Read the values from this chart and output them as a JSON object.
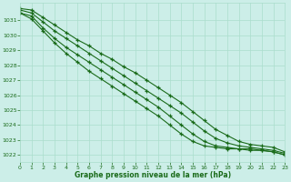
{
  "bg_color": "#cceee8",
  "grid_color": "#aaddcc",
  "line_color": "#1a6b1a",
  "marker_color": "#1a6b1a",
  "xlabel": "Graphe pression niveau de la mer (hPa)",
  "xlabel_color": "#1a6b1a",
  "tick_color": "#1a6b1a",
  "xlim": [
    0,
    23
  ],
  "ylim": [
    1021.5,
    1032.2
  ],
  "yticks": [
    1022,
    1023,
    1024,
    1025,
    1026,
    1027,
    1028,
    1029,
    1030,
    1031
  ],
  "xticks": [
    0,
    1,
    2,
    3,
    4,
    5,
    6,
    7,
    8,
    9,
    10,
    11,
    12,
    13,
    14,
    15,
    16,
    17,
    18,
    19,
    20,
    21,
    22,
    23
  ],
  "series": [
    [
      1031.8,
      1031.7,
      1031.2,
      1030.7,
      1030.2,
      1029.7,
      1029.3,
      1028.8,
      1028.4,
      1027.9,
      1027.5,
      1027.0,
      1026.5,
      1026.0,
      1025.5,
      1024.9,
      1024.3,
      1023.7,
      1023.3,
      1022.9,
      1022.7,
      1022.6,
      1022.5,
      1022.2
    ],
    [
      1031.7,
      1031.5,
      1030.9,
      1030.3,
      1029.8,
      1029.3,
      1028.8,
      1028.3,
      1027.8,
      1027.3,
      1026.8,
      1026.3,
      1025.8,
      1025.3,
      1024.8,
      1024.2,
      1023.6,
      1023.1,
      1022.8,
      1022.6,
      1022.5,
      1022.4,
      1022.3,
      1022.1
    ],
    [
      1031.5,
      1031.3,
      1030.5,
      1029.8,
      1029.2,
      1028.7,
      1028.2,
      1027.7,
      1027.2,
      1026.7,
      1026.2,
      1025.7,
      1025.2,
      1024.6,
      1024.0,
      1023.4,
      1022.9,
      1022.6,
      1022.5,
      1022.4,
      1022.4,
      1022.3,
      1022.2,
      1022.0
    ],
    [
      1031.5,
      1031.1,
      1030.3,
      1029.5,
      1028.8,
      1028.2,
      1027.6,
      1027.1,
      1026.6,
      1026.1,
      1025.6,
      1025.1,
      1024.6,
      1024.0,
      1023.4,
      1022.9,
      1022.6,
      1022.5,
      1022.4,
      1022.4,
      1022.3,
      1022.3,
      1022.2,
      1022.0
    ]
  ]
}
